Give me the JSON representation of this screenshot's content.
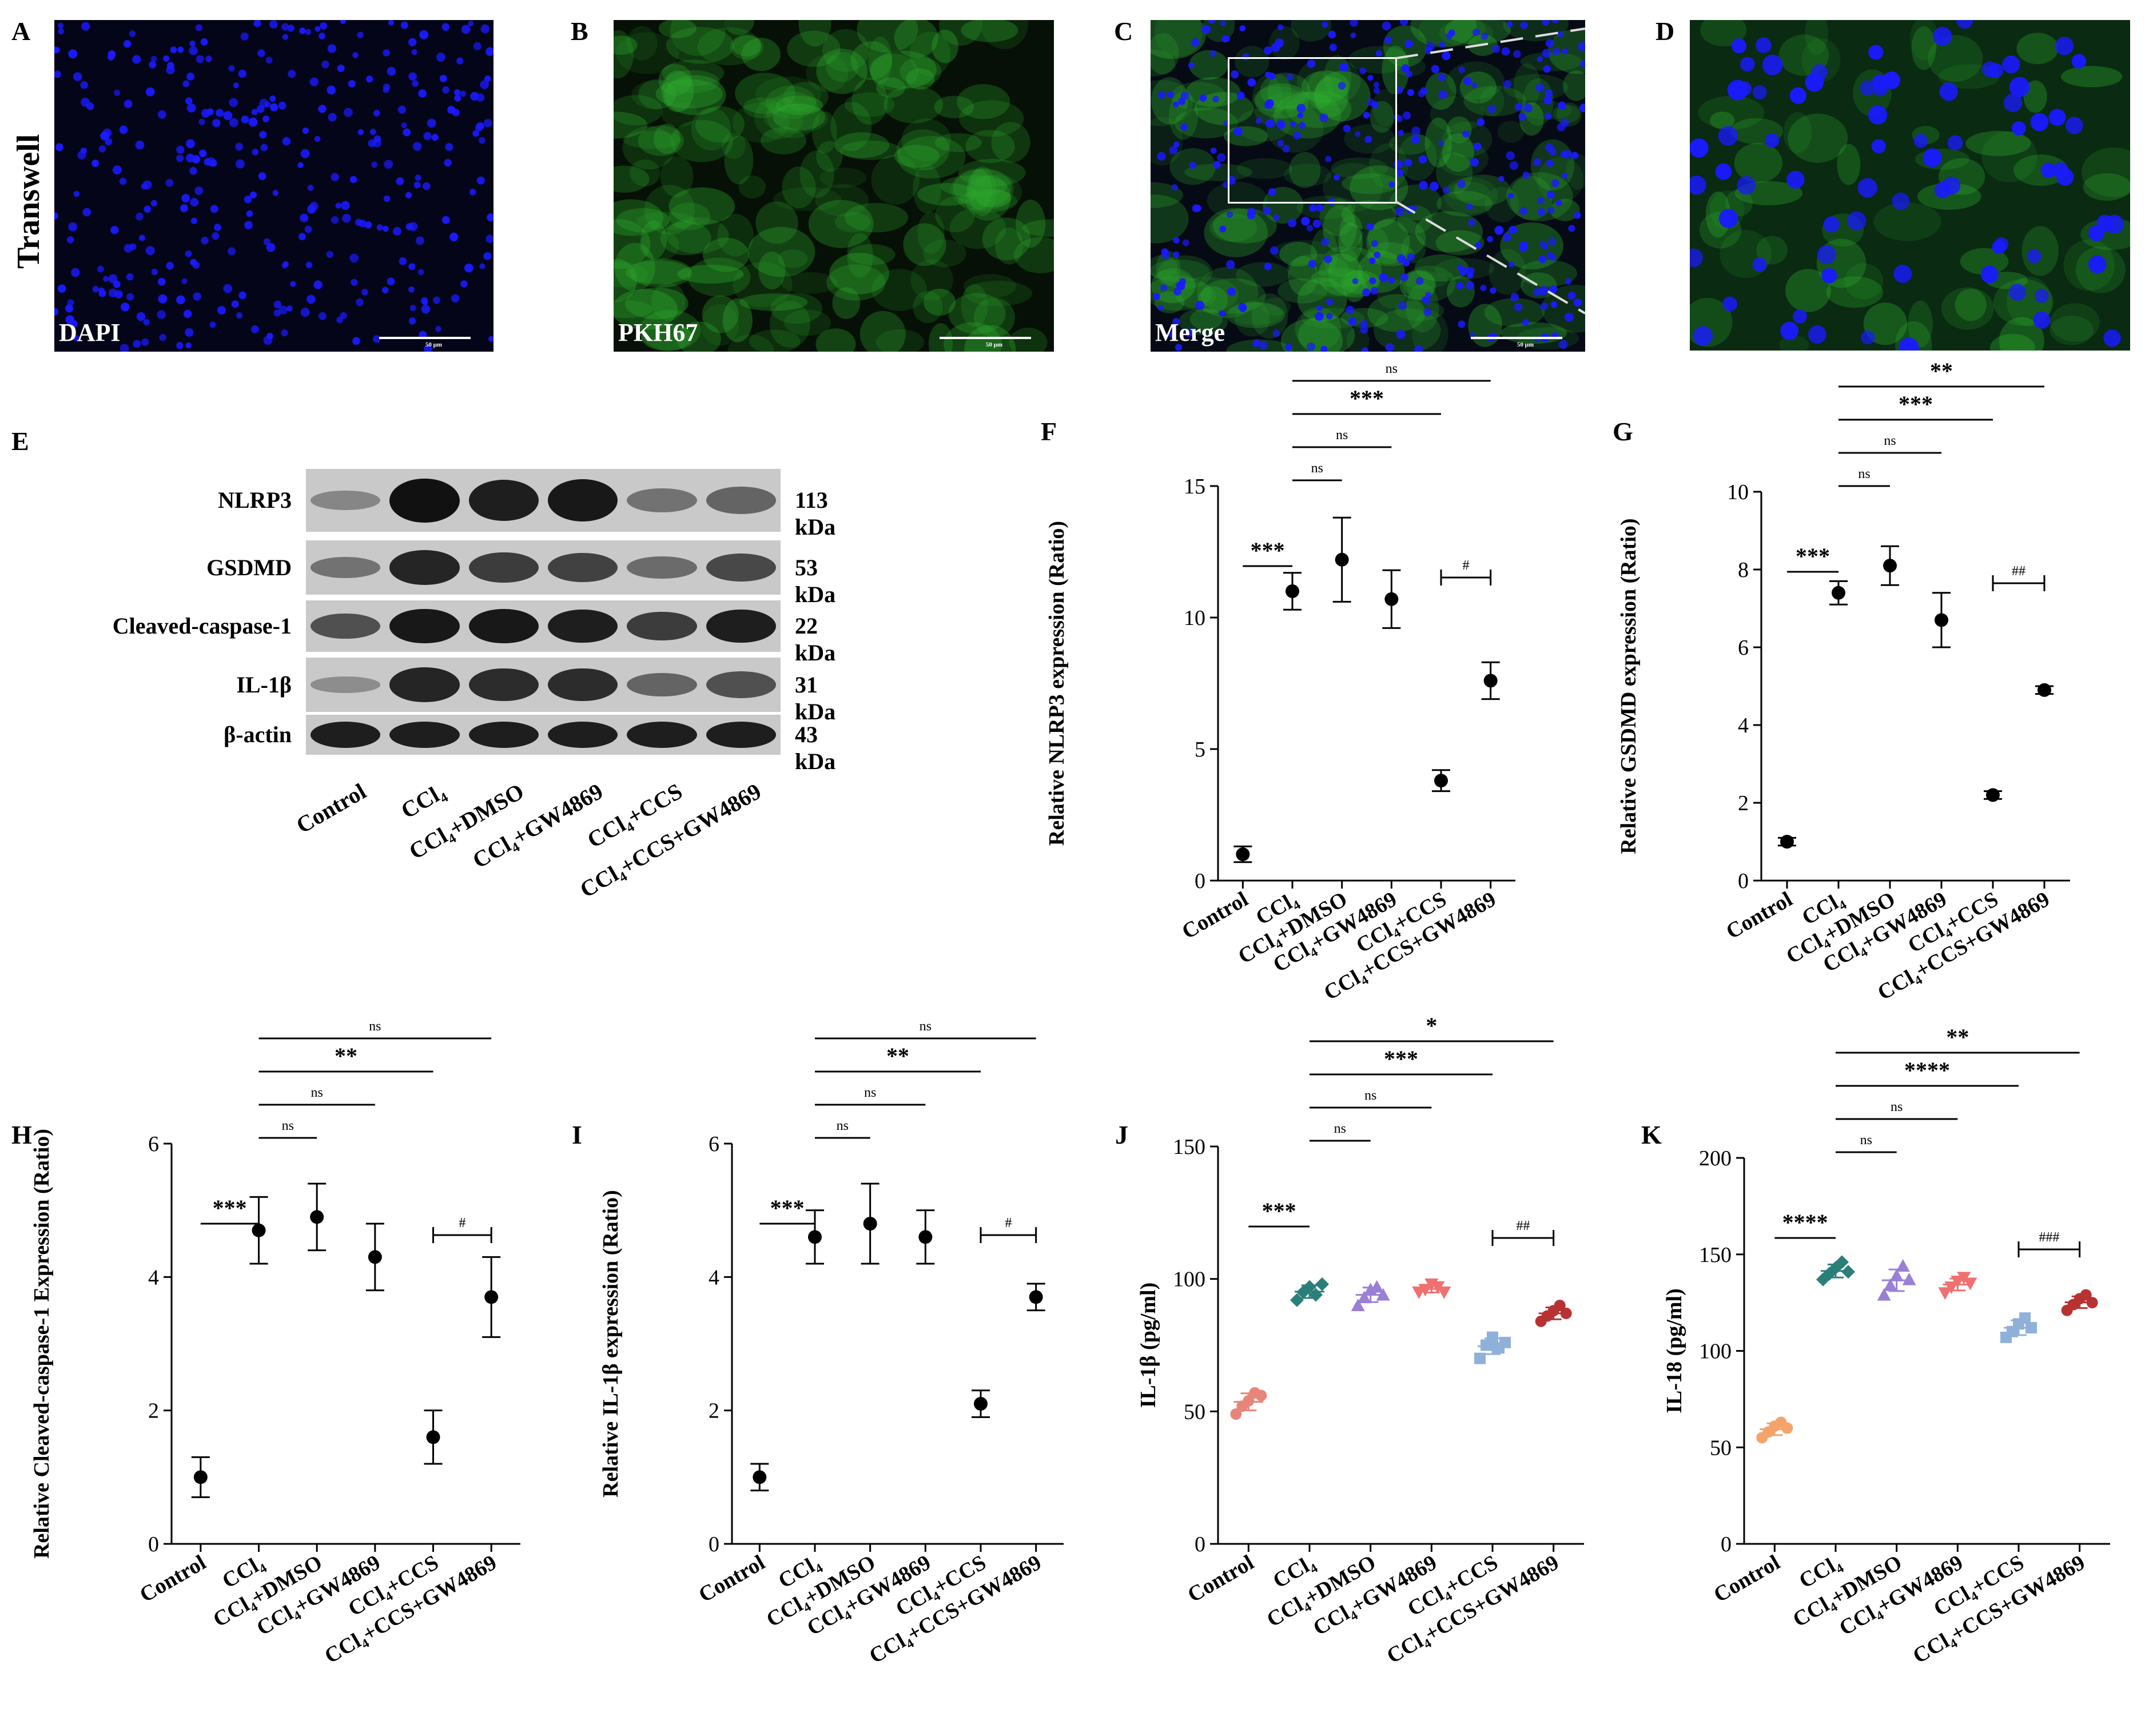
{
  "panels": {
    "a": {
      "letter": "A",
      "label": "DAPI"
    },
    "b": {
      "letter": "B",
      "label": "PKH67"
    },
    "c": {
      "letter": "C",
      "label": "Merge"
    },
    "d": {
      "letter": "D"
    },
    "e": {
      "letter": "E"
    },
    "row_label": "Transwell",
    "scale_text": "50 μm"
  },
  "colors": {
    "dapi": "#1a1aff",
    "pkh67": "#2fae2f",
    "control": "#e8857a",
    "ccl4": "#2a7f7a",
    "dmso": "#9a7fd6",
    "gw4869": "#f07070",
    "ccs": "#8fb0d9",
    "ccs_gw4869": "#b83232",
    "k_control": "#f4a46a",
    "k_ccl4": "#2a7f7a",
    "k_dmso": "#9a7fd6",
    "k_gw4869": "#f07070",
    "k_ccs": "#8fb0d9",
    "k_ccs_gw4869": "#b83232"
  },
  "western_blot": {
    "proteins": [
      {
        "name": "NLRP3",
        "kda": "113 kDa"
      },
      {
        "name": "GSDMD",
        "kda": "53 kDa"
      },
      {
        "name": "Cleaved-caspase-1",
        "kda": "22 kDa"
      },
      {
        "name": "IL-1β",
        "kda": "31 kDa"
      },
      {
        "name": "β-actin",
        "kda": "43 kDa"
      }
    ],
    "groups": [
      "Control",
      "CCl₄",
      "CCl₄+DMSO",
      "CCl₄+GW4869",
      "CCl₄+CCS",
      "CCl₄+CCS+GW4869"
    ]
  },
  "chart_data": [
    {
      "id": "F",
      "type": "scatter",
      "ylabel": "Relative NLRP3 expression (Ratio)",
      "ylim": [
        0,
        15
      ],
      "yticks": [
        0,
        5,
        10,
        15
      ],
      "categories": [
        "Control",
        "CCl₄",
        "CCl₄+DMSO",
        "CCl₄+GW4869",
        "CCl₄+CCS",
        "CCl₄+CCS+GW4869"
      ],
      "means": [
        1.0,
        11.0,
        12.2,
        10.7,
        3.8,
        7.6
      ],
      "sd": [
        0.3,
        0.7,
        1.6,
        1.1,
        0.4,
        0.7
      ],
      "sig": [
        {
          "from": 0,
          "to": 1,
          "text": "***"
        },
        {
          "from": 1,
          "to": 2,
          "text": "ns"
        },
        {
          "from": 1,
          "to": 3,
          "text": "ns"
        },
        {
          "from": 1,
          "to": 4,
          "text": "***"
        },
        {
          "from": 1,
          "to": 5,
          "text": "ns"
        },
        {
          "from": 4,
          "to": 5,
          "text": "#"
        }
      ]
    },
    {
      "id": "G",
      "type": "scatter",
      "ylabel": "Relative GSDMD expression (Ratio)",
      "ylim": [
        0,
        10
      ],
      "yticks": [
        0,
        2,
        4,
        6,
        8,
        10
      ],
      "categories": [
        "Control",
        "CCl₄",
        "CCl₄+DMSO",
        "CCl₄+GW4869",
        "CCl₄+CCS",
        "CCl₄+CCS+GW4869"
      ],
      "means": [
        1.0,
        7.4,
        8.1,
        6.7,
        2.2,
        4.9
      ],
      "sd": [
        0.1,
        0.3,
        0.5,
        0.7,
        0.1,
        0.1
      ],
      "sig": [
        {
          "from": 0,
          "to": 1,
          "text": "***"
        },
        {
          "from": 1,
          "to": 2,
          "text": "ns"
        },
        {
          "from": 1,
          "to": 3,
          "text": "ns"
        },
        {
          "from": 1,
          "to": 4,
          "text": "***"
        },
        {
          "from": 1,
          "to": 5,
          "text": "**"
        },
        {
          "from": 4,
          "to": 5,
          "text": "##"
        }
      ]
    },
    {
      "id": "H",
      "type": "scatter",
      "ylabel": "Relative Cleaved-caspase-1 Expression (Ratio)",
      "ylim": [
        0,
        6
      ],
      "yticks": [
        0,
        2,
        4,
        6
      ],
      "categories": [
        "Control",
        "CCl₄",
        "CCl₄+DMSO",
        "CCl₄+GW4869",
        "CCl₄+CCS",
        "CCl₄+CCS+GW4869"
      ],
      "means": [
        1.0,
        4.7,
        4.9,
        4.3,
        1.6,
        3.7
      ],
      "sd": [
        0.3,
        0.5,
        0.5,
        0.5,
        0.4,
        0.6
      ],
      "sig": [
        {
          "from": 0,
          "to": 1,
          "text": "***"
        },
        {
          "from": 1,
          "to": 2,
          "text": "ns"
        },
        {
          "from": 1,
          "to": 3,
          "text": "ns"
        },
        {
          "from": 1,
          "to": 4,
          "text": "**"
        },
        {
          "from": 1,
          "to": 5,
          "text": "ns"
        },
        {
          "from": 4,
          "to": 5,
          "text": "#"
        }
      ]
    },
    {
      "id": "I",
      "type": "scatter",
      "ylabel": "Relative IL-1β expression (Ratio)",
      "ylim": [
        0,
        6
      ],
      "yticks": [
        0,
        2,
        4,
        6
      ],
      "categories": [
        "Control",
        "CCl₄",
        "CCl₄+DMSO",
        "CCl₄+GW4869",
        "CCl₄+CCS",
        "CCl₄+CCS+GW4869"
      ],
      "means": [
        1.0,
        4.6,
        4.8,
        4.6,
        2.1,
        3.7
      ],
      "sd": [
        0.2,
        0.4,
        0.6,
        0.4,
        0.2,
        0.2
      ],
      "sig": [
        {
          "from": 0,
          "to": 1,
          "text": "***"
        },
        {
          "from": 1,
          "to": 2,
          "text": "ns"
        },
        {
          "from": 1,
          "to": 3,
          "text": "ns"
        },
        {
          "from": 1,
          "to": 4,
          "text": "**"
        },
        {
          "from": 1,
          "to": 5,
          "text": "ns"
        },
        {
          "from": 4,
          "to": 5,
          "text": "#"
        }
      ]
    },
    {
      "id": "J",
      "type": "scatter",
      "ylabel": "IL-1β (pg/ml)",
      "ylim": [
        0,
        150
      ],
      "yticks": [
        0,
        50,
        100,
        150
      ],
      "categories": [
        "Control",
        "CCl₄",
        "CCl₄+DMSO",
        "CCl₄+GW4869",
        "CCl₄+CCS",
        "CCl₄+CCS+GW4869"
      ],
      "markers": [
        "circle",
        "diamond",
        "triangle",
        "triangle-down",
        "square",
        "circle"
      ],
      "points": [
        [
          49,
          52,
          54,
          57,
          56
        ],
        [
          92,
          95,
          97,
          94,
          98
        ],
        [
          90,
          93,
          96,
          97,
          94
        ],
        [
          95,
          96,
          98,
          97,
          95
        ],
        [
          70,
          75,
          78,
          74,
          76
        ],
        [
          84,
          86,
          88,
          90,
          87
        ]
      ],
      "sig": [
        {
          "from": 0,
          "to": 1,
          "text": "***"
        },
        {
          "from": 1,
          "to": 2,
          "text": "ns"
        },
        {
          "from": 1,
          "to": 3,
          "text": "ns"
        },
        {
          "from": 1,
          "to": 4,
          "text": "***"
        },
        {
          "from": 1,
          "to": 5,
          "text": "*"
        },
        {
          "from": 4,
          "to": 5,
          "text": "##"
        }
      ]
    },
    {
      "id": "K",
      "type": "scatter",
      "ylabel": "IL-18 (pg/ml)",
      "ylim": [
        0,
        200
      ],
      "yticks": [
        0,
        50,
        100,
        150,
        200
      ],
      "categories": [
        "Control",
        "CCl₄",
        "CCl₄+DMSO",
        "CCl₄+GW4869",
        "CCl₄+CCS",
        "CCl₄+CCS+GW4869"
      ],
      "markers": [
        "circle",
        "diamond",
        "triangle",
        "triangle-down",
        "square",
        "circle"
      ],
      "points": [
        [
          55,
          58,
          61,
          63,
          60
        ],
        [
          137,
          140,
          143,
          146,
          141
        ],
        [
          129,
          134,
          139,
          144,
          137
        ],
        [
          130,
          133,
          136,
          138,
          135
        ],
        [
          107,
          110,
          114,
          117,
          112
        ],
        [
          121,
          124,
          127,
          129,
          125
        ]
      ],
      "sig": [
        {
          "from": 0,
          "to": 1,
          "text": "****"
        },
        {
          "from": 1,
          "to": 2,
          "text": "ns"
        },
        {
          "from": 1,
          "to": 3,
          "text": "ns"
        },
        {
          "from": 1,
          "to": 4,
          "text": "****"
        },
        {
          "from": 1,
          "to": 5,
          "text": "**"
        },
        {
          "from": 4,
          "to": 5,
          "text": "###"
        }
      ]
    }
  ]
}
